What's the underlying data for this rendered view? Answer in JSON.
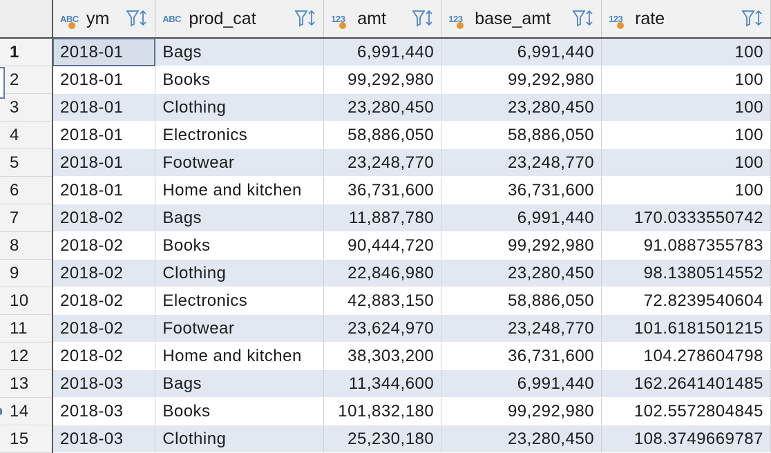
{
  "columns": [
    {
      "type": "ABC",
      "name": "ym"
    },
    {
      "type": "ABC",
      "name": "prod_cat"
    },
    {
      "type": "123",
      "name": "amt"
    },
    {
      "type": "123",
      "name": "base_amt"
    },
    {
      "type": "123",
      "name": "rate"
    }
  ],
  "rows": [
    {
      "n": "1",
      "ym": "2018-01",
      "prod_cat": "Bags",
      "amt": "6,991,440",
      "base_amt": "6,991,440",
      "rate": "100"
    },
    {
      "n": "2",
      "ym": "2018-01",
      "prod_cat": "Books",
      "amt": "99,292,980",
      "base_amt": "99,292,980",
      "rate": "100"
    },
    {
      "n": "3",
      "ym": "2018-01",
      "prod_cat": "Clothing",
      "amt": "23,280,450",
      "base_amt": "23,280,450",
      "rate": "100"
    },
    {
      "n": "4",
      "ym": "2018-01",
      "prod_cat": "Electronics",
      "amt": "58,886,050",
      "base_amt": "58,886,050",
      "rate": "100"
    },
    {
      "n": "5",
      "ym": "2018-01",
      "prod_cat": "Footwear",
      "amt": "23,248,770",
      "base_amt": "23,248,770",
      "rate": "100"
    },
    {
      "n": "6",
      "ym": "2018-01",
      "prod_cat": "Home and kitchen",
      "amt": "36,731,600",
      "base_amt": "36,731,600",
      "rate": "100"
    },
    {
      "n": "7",
      "ym": "2018-02",
      "prod_cat": "Bags",
      "amt": "11,887,780",
      "base_amt": "6,991,440",
      "rate": "170.0333550742"
    },
    {
      "n": "8",
      "ym": "2018-02",
      "prod_cat": "Books",
      "amt": "90,444,720",
      "base_amt": "99,292,980",
      "rate": "91.0887355783"
    },
    {
      "n": "9",
      "ym": "2018-02",
      "prod_cat": "Clothing",
      "amt": "22,846,980",
      "base_amt": "23,280,450",
      "rate": "98.1380514552"
    },
    {
      "n": "10",
      "ym": "2018-02",
      "prod_cat": "Electronics",
      "amt": "42,883,150",
      "base_amt": "58,886,050",
      "rate": "72.8239540604"
    },
    {
      "n": "11",
      "ym": "2018-02",
      "prod_cat": "Footwear",
      "amt": "23,624,970",
      "base_amt": "23,248,770",
      "rate": "101.6181501215"
    },
    {
      "n": "12",
      "ym": "2018-02",
      "prod_cat": "Home and kitchen",
      "amt": "38,303,200",
      "base_amt": "36,731,600",
      "rate": "104.278604798"
    },
    {
      "n": "13",
      "ym": "2018-03",
      "prod_cat": "Bags",
      "amt": "11,344,600",
      "base_amt": "6,991,440",
      "rate": "162.2641401485"
    },
    {
      "n": "14",
      "ym": "2018-03",
      "prod_cat": "Books",
      "amt": "101,832,180",
      "base_amt": "99,292,980",
      "rate": "102.5572804845"
    },
    {
      "n": "15",
      "ym": "2018-03",
      "prod_cat": "Clothing",
      "amt": "25,230,180",
      "base_amt": "23,280,450",
      "rate": "108.3749669787"
    }
  ],
  "colors": {
    "row_alt": "#e2e8f2",
    "type_label": "#4a86c8",
    "type_dot": "#e8932e",
    "filter_icon": "#4a86c8"
  },
  "icons": {
    "header_action": "filter-sort-icon"
  }
}
